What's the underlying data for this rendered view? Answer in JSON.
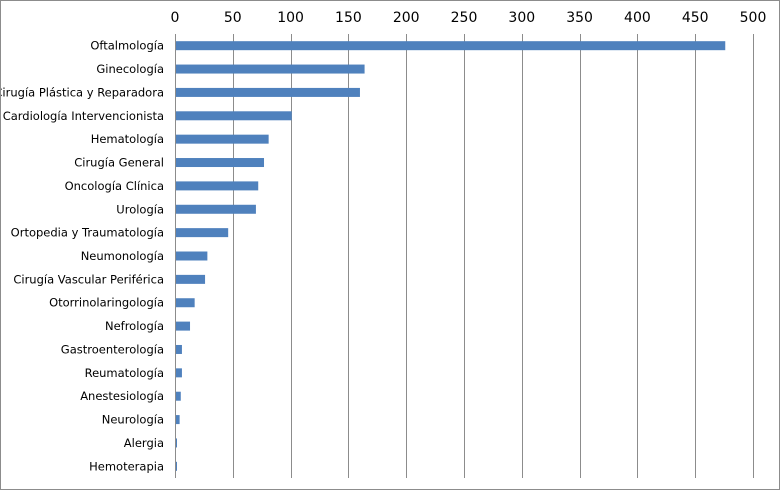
{
  "chart_data": {
    "type": "bar",
    "orientation": "horizontal",
    "title": "",
    "xlabel": "",
    "ylabel": "",
    "xlim": [
      0,
      500
    ],
    "x_ticks": [
      0,
      50,
      100,
      150,
      200,
      250,
      300,
      350,
      400,
      450,
      500
    ],
    "x_axis_position": "top",
    "grid": "vertical",
    "legend": "none",
    "bar_color": "#4f81bd",
    "categories": [
      "Oftalmología",
      "Ginecología",
      "Cirugía Plástica y Reparadora",
      "Cardiología Intervencionista",
      "Hematología",
      "Cirugía General",
      "Oncología Clínica",
      "Urología",
      "Ortopedia y Traumatología",
      "Neumonología",
      "Cirugía Vascular Periférica",
      "Otorrinolaringología",
      "Nefrología",
      "Gastroenterología",
      "Reumatología",
      "Anestesiología",
      "Neurología",
      "Alergia",
      "Hemoterapia"
    ],
    "values": [
      476,
      164,
      160,
      101,
      81,
      77,
      72,
      70,
      46,
      28,
      26,
      17,
      13,
      6,
      6,
      5,
      4,
      1,
      1
    ]
  }
}
